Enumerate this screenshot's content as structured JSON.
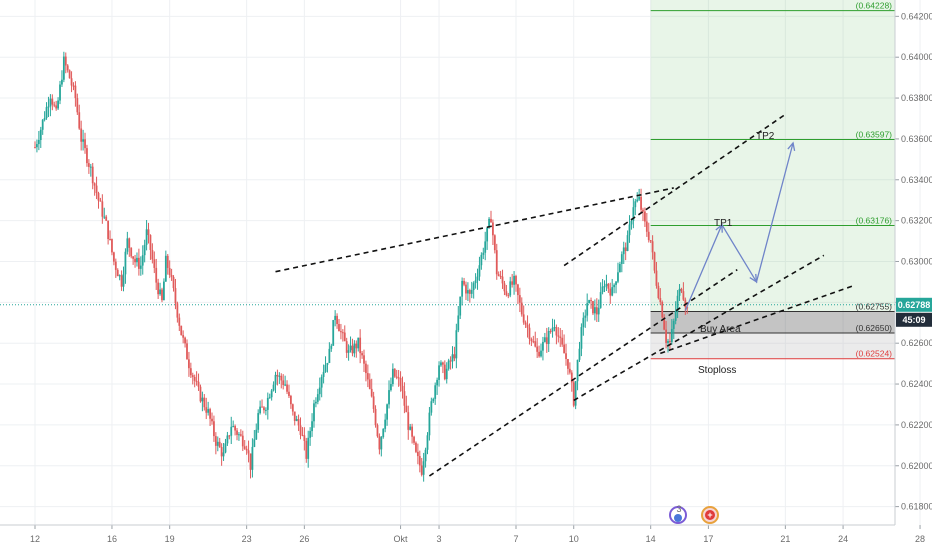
{
  "chart_data": {
    "type": "candlestick",
    "ylim": [
      0.6171,
      0.6428
    ],
    "grid": true,
    "x_ticks": [
      {
        "label": "12",
        "t": 0
      },
      {
        "label": "16",
        "t": 4
      },
      {
        "label": "19",
        "t": 7
      },
      {
        "label": "23",
        "t": 11
      },
      {
        "label": "26",
        "t": 14
      },
      {
        "label": "Okt",
        "t": 19
      },
      {
        "label": "3",
        "t": 21
      },
      {
        "label": "7",
        "t": 25
      },
      {
        "label": "10",
        "t": 28
      },
      {
        "label": "14",
        "t": 32
      },
      {
        "label": "17",
        "t": 35
      },
      {
        "label": "21",
        "t": 39
      },
      {
        "label": "24",
        "t": 42
      },
      {
        "label": "28",
        "t": 46
      }
    ],
    "y_ticks": [
      "0.61800",
      "0.62000",
      "0.62200",
      "0.62400",
      "0.62600",
      "0.62800",
      "0.63000",
      "0.63200",
      "0.63400",
      "0.63600",
      "0.63800",
      "0.64000",
      "0.64200"
    ],
    "price_path": [
      [
        0,
        0.6356
      ],
      [
        0.3,
        0.6365
      ],
      [
        0.8,
        0.6382
      ],
      [
        1.1,
        0.6372
      ],
      [
        1.5,
        0.6398
      ],
      [
        1.8,
        0.639
      ],
      [
        2.1,
        0.638
      ],
      [
        2.4,
        0.636
      ],
      [
        2.9,
        0.6345
      ],
      [
        3.3,
        0.633
      ],
      [
        3.7,
        0.6318
      ],
      [
        4.1,
        0.63
      ],
      [
        4.5,
        0.629
      ],
      [
        4.8,
        0.631
      ],
      [
        5.2,
        0.63
      ],
      [
        5.5,
        0.6298
      ],
      [
        5.8,
        0.6314
      ],
      [
        6.0,
        0.6306
      ],
      [
        6.3,
        0.629
      ],
      [
        6.6,
        0.628
      ],
      [
        6.8,
        0.63
      ],
      [
        7.0,
        0.6295
      ],
      [
        7.3,
        0.628
      ],
      [
        7.6,
        0.6265
      ],
      [
        8.0,
        0.625
      ],
      [
        8.5,
        0.6236
      ],
      [
        9.0,
        0.6226
      ],
      [
        9.4,
        0.6212
      ],
      [
        9.8,
        0.6205
      ],
      [
        10.2,
        0.622
      ],
      [
        10.6,
        0.6215
      ],
      [
        11.0,
        0.621
      ],
      [
        11.2,
        0.62
      ],
      [
        11.6,
        0.6225
      ],
      [
        12.0,
        0.623
      ],
      [
        12.5,
        0.6245
      ],
      [
        13.0,
        0.624
      ],
      [
        13.4,
        0.6225
      ],
      [
        13.8,
        0.6218
      ],
      [
        14.1,
        0.6205
      ],
      [
        14.5,
        0.623
      ],
      [
        14.9,
        0.6245
      ],
      [
        15.3,
        0.6255
      ],
      [
        15.6,
        0.6275
      ],
      [
        15.9,
        0.6265
      ],
      [
        16.3,
        0.6255
      ],
      [
        16.8,
        0.626
      ],
      [
        17.2,
        0.6245
      ],
      [
        17.6,
        0.6228
      ],
      [
        17.9,
        0.621
      ],
      [
        18.2,
        0.6225
      ],
      [
        18.6,
        0.6245
      ],
      [
        19.0,
        0.624
      ],
      [
        19.4,
        0.622
      ],
      [
        19.8,
        0.6205
      ],
      [
        20.1,
        0.6198
      ],
      [
        20.6,
        0.623
      ],
      [
        21.0,
        0.625
      ],
      [
        21.3,
        0.6245
      ],
      [
        21.8,
        0.6255
      ],
      [
        22.2,
        0.629
      ],
      [
        22.6,
        0.6283
      ],
      [
        23.0,
        0.6295
      ],
      [
        23.4,
        0.631
      ],
      [
        23.7,
        0.6322
      ],
      [
        24.0,
        0.6295
      ],
      [
        24.5,
        0.6285
      ],
      [
        24.9,
        0.629
      ],
      [
        25.3,
        0.6275
      ],
      [
        25.7,
        0.6265
      ],
      [
        26.1,
        0.6255
      ],
      [
        26.6,
        0.6262
      ],
      [
        27.0,
        0.627
      ],
      [
        27.3,
        0.626
      ],
      [
        27.7,
        0.625
      ],
      [
        28.0,
        0.6232
      ],
      [
        28.3,
        0.626
      ],
      [
        28.7,
        0.628
      ],
      [
        29.2,
        0.6275
      ],
      [
        29.6,
        0.629
      ],
      [
        30.0,
        0.6285
      ],
      [
        30.4,
        0.63
      ],
      [
        30.8,
        0.631
      ],
      [
        31.1,
        0.6328
      ],
      [
        31.4,
        0.633
      ],
      [
        31.7,
        0.6318
      ],
      [
        32.0,
        0.631
      ],
      [
        32.2,
        0.6295
      ],
      [
        32.4,
        0.6285
      ],
      [
        32.6,
        0.6275
      ],
      [
        32.8,
        0.6262
      ],
      [
        33.0,
        0.626
      ],
      [
        33.2,
        0.627
      ],
      [
        33.4,
        0.6282
      ],
      [
        33.6,
        0.6288
      ],
      [
        33.9,
        0.6276
      ]
    ],
    "levels": [
      {
        "value": 0.64228,
        "label": "(0.64228)",
        "color": "#2e9e2e"
      },
      {
        "value": 0.63597,
        "label": "(0.63597)",
        "color": "#2e9e2e"
      },
      {
        "value": 0.63176,
        "label": "(0.63176)",
        "color": "#2e9e2e"
      },
      {
        "value": 0.62755,
        "label": "(0.62755)",
        "color": "#333333"
      },
      {
        "value": 0.6265,
        "label": "(0.62650)",
        "color": "#333333"
      },
      {
        "value": 0.62524,
        "label": "(0.62524)",
        "color": "#e03b3b"
      }
    ],
    "current_price": {
      "label": "0.62788",
      "value": 0.62788,
      "color": "#26a69a"
    },
    "countdown": {
      "label": "45:09",
      "color": "#222d3a"
    },
    "annotations": {
      "tp2": "TP2",
      "tp1": "TP1",
      "buy_area": "Buy Area",
      "stoploss": "Stoploss"
    },
    "channel_lines": [
      [
        [
          12.5,
          0.6295
        ],
        [
          33.2,
          0.6336
        ]
      ],
      [
        [
          20.5,
          0.6195
        ],
        [
          36.5,
          0.6296
        ]
      ],
      [
        [
          27.5,
          0.6298
        ],
        [
          39.0,
          0.6372
        ]
      ],
      [
        [
          28.0,
          0.6232
        ],
        [
          41.0,
          0.6303
        ]
      ],
      [
        [
          32.5,
          0.6255
        ],
        [
          42.5,
          0.6288
        ]
      ]
    ],
    "projection_path": [
      [
        33.8,
        0.6276
      ],
      [
        35.7,
        0.6318
      ],
      [
        37.5,
        0.629
      ],
      [
        39.4,
        0.6358
      ]
    ],
    "target_zone": {
      "t_start": 32.0,
      "top": 0.6428,
      "bottom": 0.62755,
      "color": "#4caf50"
    },
    "buy_zone": {
      "t_start": 32.0,
      "top": 0.62755,
      "bottom": 0.6265,
      "color": "#555555"
    },
    "stop_zone": {
      "t_start": 32.0,
      "top": 0.6265,
      "bottom": 0.62524,
      "color": "#bdbdbd"
    },
    "colors": {
      "up": "#26a69a",
      "down": "#e05a5a",
      "grid": "#eef0f3"
    }
  },
  "events": [
    {
      "icon": "dividend-flag-icon",
      "text": "3"
    },
    {
      "icon": "red-cross-icon",
      "text": "+"
    }
  ]
}
